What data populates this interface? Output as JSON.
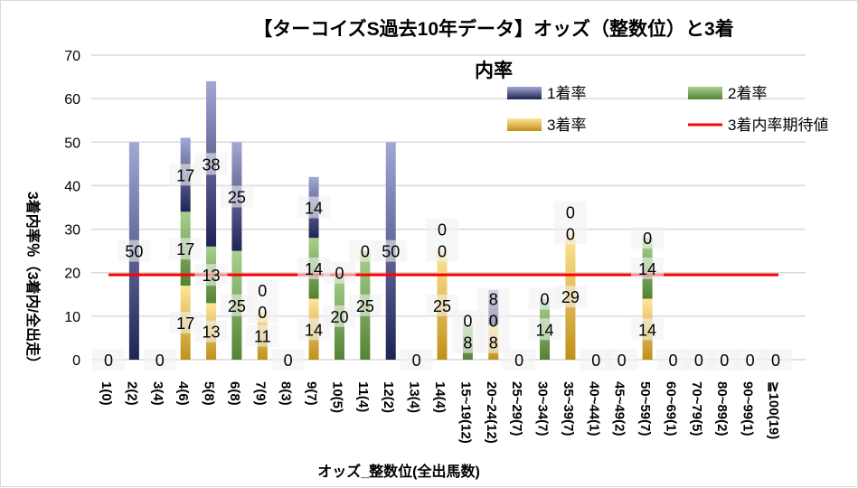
{
  "chart_data": {
    "type": "bar",
    "stacked": true,
    "title_line1": "【ターコイズS過去10年データ】オッズ（整数位）と3着",
    "title_line2": "内率",
    "xlabel": "オッズ_整数位(全出馬数)",
    "ylabel": "3着内率％（3着内/全出走）",
    "ylim": [
      0,
      70
    ],
    "yticks": [
      "0",
      "10",
      "20",
      "30",
      "40",
      "50",
      "60",
      "70"
    ],
    "grid": true,
    "legend_position": "top-right",
    "categories": [
      "1(0)",
      "2(2)",
      "3(4)",
      "4(6)",
      "5(8)",
      "6(8)",
      "7(9)",
      "8(3)",
      "9(7)",
      "10(5)",
      "11(4)",
      "12(2)",
      "13(4)",
      "14(4)",
      "15~19(12)",
      "20~24(12)",
      "25~29(7)",
      "30~34(7)",
      "35~39(7)",
      "40~44(1)",
      "45~49(2)",
      "50~59(7)",
      "60~69(1)",
      "70~79(5)",
      "80~89(2)",
      "90~99(1)",
      "≧100(19)"
    ],
    "series": [
      {
        "name": "3着率",
        "colors": [
          "#c08f1a",
          "#ffe699"
        ],
        "values": [
          0,
          0,
          0,
          17,
          13,
          0,
          11,
          0,
          14,
          0,
          0,
          0,
          0,
          25,
          0,
          8,
          0,
          0,
          29,
          0,
          0,
          14,
          0,
          0,
          0,
          0,
          0
        ]
      },
      {
        "name": "2着率",
        "colors": [
          "#548235",
          "#a9d18e"
        ],
        "values": [
          0,
          0,
          0,
          17,
          13,
          25,
          0,
          0,
          14,
          20,
          25,
          0,
          0,
          0,
          8,
          0,
          0,
          14,
          0,
          0,
          0,
          14,
          0,
          0,
          0,
          0,
          0
        ]
      },
      {
        "name": "1着率",
        "colors": [
          "#1f2456",
          "#a2a7d4"
        ],
        "values": [
          0,
          50,
          0,
          17,
          38,
          25,
          0,
          0,
          14,
          0,
          0,
          50,
          0,
          0,
          0,
          8,
          0,
          0,
          0,
          0,
          0,
          0,
          0,
          0,
          0,
          0,
          0
        ]
      }
    ],
    "reference_line": {
      "name": "3着内率期待値",
      "value": 19.5,
      "color": "#ff0000"
    }
  }
}
